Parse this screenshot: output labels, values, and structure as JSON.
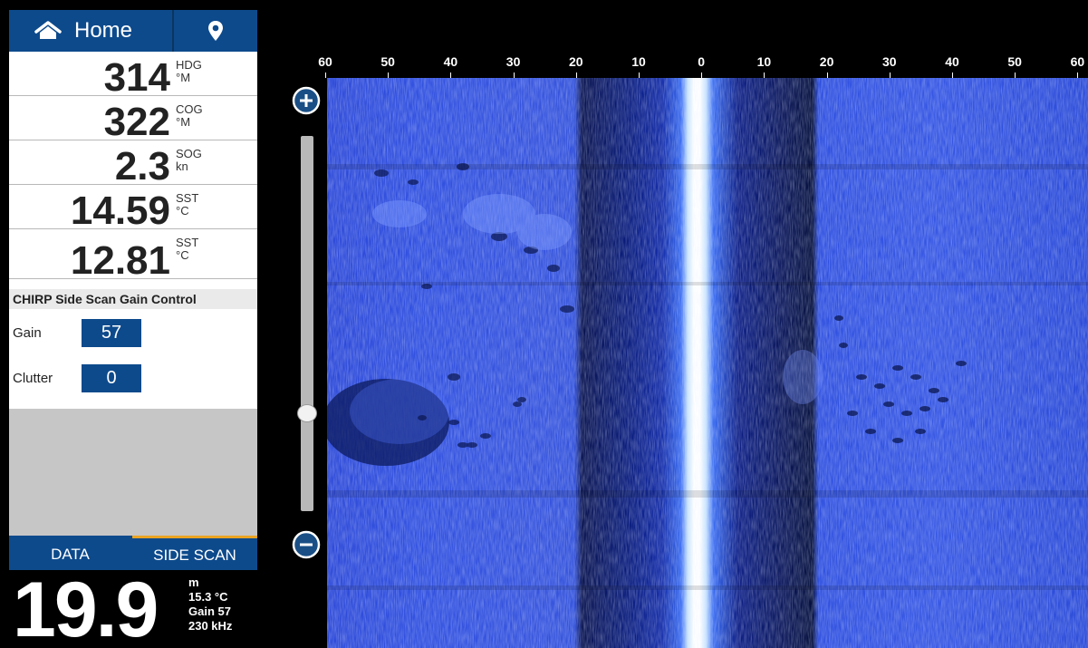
{
  "topbar": {
    "home_label": "Home",
    "home_icon": "home-icon",
    "waypoint_icon": "map-pin-icon"
  },
  "data_rows": [
    {
      "value": "314",
      "label_top": "HDG",
      "label_bottom": "°M"
    },
    {
      "value": "322",
      "label_top": "COG",
      "label_bottom": "°M"
    },
    {
      "value": "2.3",
      "label_top": "SOG",
      "label_bottom": "kn"
    },
    {
      "value": "14.59",
      "label_top": "SST",
      "label_bottom": "°C"
    },
    {
      "value": "12.81",
      "label_top": "SST",
      "label_bottom": "°C"
    }
  ],
  "gain_control": {
    "title": "CHIRP Side Scan Gain Control",
    "gain_label": "Gain",
    "gain_value": "57",
    "clutter_label": "Clutter",
    "clutter_value": "0"
  },
  "tabs": {
    "data": "DATA",
    "side_scan": "SIDE SCAN",
    "active": "SIDE SCAN",
    "active_color": "#e9a323"
  },
  "depth": {
    "value": "19.9",
    "unit": "m",
    "temp": "15.3 °C",
    "gain": "Gain 57",
    "freq": "230 kHz"
  },
  "range_scale": [
    "60",
    "50",
    "40",
    "30",
    "20",
    "10",
    "0",
    "10",
    "20",
    "30",
    "40",
    "50",
    "60"
  ],
  "slider": {
    "zoom_in_icon": "plus-circle-icon",
    "zoom_out_icon": "minus-circle-icon"
  },
  "colors": {
    "panel_blue": "#0d4a8c",
    "sonar_blue": "#3050e0"
  }
}
